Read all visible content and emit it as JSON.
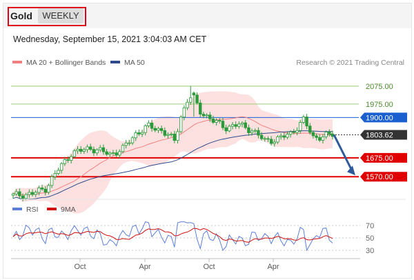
{
  "header": {
    "title": "Gold",
    "timeframe": "WEEKLY"
  },
  "timestamp": "Wednesday, September 15, 2021 3:04:03 AM CET",
  "legend": {
    "ma20_bb": "MA 20 + Bollinger Bands",
    "ma50": "MA 50",
    "credit": "Research © 2021 Trading Central",
    "rsi": "RSI",
    "rsi_ma": "9MA"
  },
  "colors": {
    "candle": "#2a9a3a",
    "bb_fill": "#fde1e1",
    "ma20": "#f08080",
    "ma50": "#2e4a8a",
    "support": "#e00000",
    "resistance_green": "#9ecb75",
    "resistance_blue": "#1a5fd0",
    "last_price": "#333333",
    "arrow": "#2e5a9a",
    "rsi": "#5b7fd6",
    "rsi_ma": "#d01010"
  },
  "chart_data": [
    {
      "type": "candlestick",
      "title": "Gold",
      "timeframe": "WEEKLY",
      "ylim": [
        1440,
        2140
      ],
      "x_ticks": [
        "Oct",
        "Apr",
        "Oct",
        "Apr"
      ],
      "series": [
        {
          "name": "MA 20 + Bollinger Bands"
        },
        {
          "name": "MA 50"
        }
      ],
      "levels": [
        {
          "value": 2075.0,
          "label": "2075.00",
          "kind": "resistance"
        },
        {
          "value": 1975.0,
          "label": "1975.00",
          "kind": "resistance"
        },
        {
          "value": 1900.0,
          "label": "1900.00",
          "kind": "pivot"
        },
        {
          "value": 1803.62,
          "label": "1803.62",
          "kind": "last"
        },
        {
          "value": 1675.0,
          "label": "1675.00",
          "kind": "support"
        },
        {
          "value": 1570.0,
          "label": "1570.00",
          "kind": "support"
        }
      ],
      "expected_path": [
        1803.62,
        1570.0
      ]
    },
    {
      "type": "line",
      "title": "",
      "ylim": [
        20,
        80
      ],
      "y_ticks": [
        70,
        50,
        30
      ],
      "series": [
        {
          "name": "RSI"
        },
        {
          "name": "9MA"
        }
      ]
    }
  ]
}
